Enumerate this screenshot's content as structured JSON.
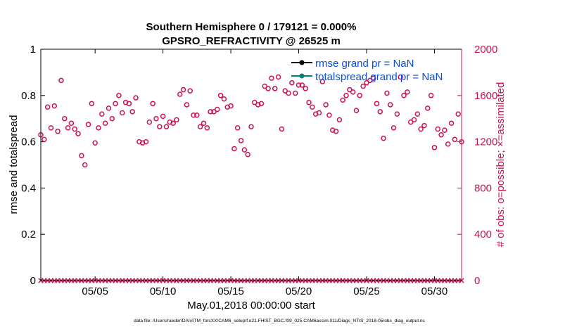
{
  "chart_data": {
    "type": "scatter",
    "title": "Southern Hemisphere 0 / 179121 = 0.000%",
    "subtitle": "GPSRO_REFRACTIVITY @ 26525 m",
    "xlabel": "May.01,2018 00:00:00 start",
    "ylabel_left": "rmse and totalspread",
    "ylabel_right": "# of obs: o=possible; ×=assimilated",
    "footer": "data file: /Users/raeder/DAI/ATM_forcXX/CAM6_setup/f.e21.FHIST_BGC.f09_025.CAM6assim.011/Diags_NTrS_2018-05/obs_diag_output.nc",
    "xlim": [
      1,
      32
    ],
    "xticks": [
      {
        "x": 5,
        "label": "05/05"
      },
      {
        "x": 10,
        "label": "05/10"
      },
      {
        "x": 15,
        "label": "05/15"
      },
      {
        "x": 20,
        "label": "05/20"
      },
      {
        "x": 25,
        "label": "05/25"
      },
      {
        "x": 30,
        "label": "05/30"
      }
    ],
    "ylim_left": [
      0,
      1
    ],
    "yticks_left": [
      "0",
      "0.2",
      "0.4",
      "0.6",
      "0.8",
      "1"
    ],
    "ylim_right": [
      0,
      2000
    ],
    "yticks_right": [
      "0",
      "400",
      "800",
      "1200",
      "1600",
      "2000"
    ],
    "legend": [
      {
        "label": "rmse grand pr = NaN",
        "color": "#000000"
      },
      {
        "label": "totalspread grand pr = NaN",
        "color": "#00807a"
      }
    ],
    "colors": {
      "obs": "#cc1155",
      "legend_text": "#0a4fe0",
      "axes": "#000000"
    },
    "possible_counts": [
      [
        1.0,
        1260
      ],
      [
        1.25,
        1220
      ],
      [
        1.5,
        1500
      ],
      [
        1.75,
        1320
      ],
      [
        2.0,
        1510
      ],
      [
        2.25,
        1290
      ],
      [
        2.5,
        1730
      ],
      [
        2.75,
        1400
      ],
      [
        3.0,
        1320
      ],
      [
        3.25,
        1360
      ],
      [
        3.5,
        1310
      ],
      [
        3.75,
        1270
      ],
      [
        4.0,
        1080
      ],
      [
        4.25,
        1000
      ],
      [
        4.5,
        1350
      ],
      [
        4.75,
        1530
      ],
      [
        5.0,
        1190
      ],
      [
        5.25,
        1320
      ],
      [
        5.5,
        1440
      ],
      [
        5.75,
        1360
      ],
      [
        6.0,
        1490
      ],
      [
        6.25,
        1400
      ],
      [
        6.5,
        1530
      ],
      [
        6.75,
        1600
      ],
      [
        7.0,
        1450
      ],
      [
        7.25,
        1540
      ],
      [
        7.5,
        1530
      ],
      [
        7.75,
        1460
      ],
      [
        8.0,
        1580
      ],
      [
        8.25,
        1200
      ],
      [
        8.5,
        1190
      ],
      [
        8.75,
        1200
      ],
      [
        9.0,
        1370
      ],
      [
        9.25,
        1530
      ],
      [
        9.5,
        1400
      ],
      [
        9.75,
        1330
      ],
      [
        10.0,
        1420
      ],
      [
        10.25,
        1330
      ],
      [
        10.5,
        1370
      ],
      [
        10.75,
        1360
      ],
      [
        11.0,
        1390
      ],
      [
        11.25,
        1610
      ],
      [
        11.5,
        1650
      ],
      [
        11.75,
        1520
      ],
      [
        12.0,
        1640
      ],
      [
        12.25,
        1430
      ],
      [
        12.5,
        1430
      ],
      [
        12.75,
        1330
      ],
      [
        13.0,
        1360
      ],
      [
        13.25,
        1320
      ],
      [
        13.5,
        1460
      ],
      [
        13.75,
        1460
      ],
      [
        14.0,
        1480
      ],
      [
        14.25,
        1600
      ],
      [
        14.5,
        1570
      ],
      [
        14.75,
        1500
      ],
      [
        15.0,
        1510
      ],
      [
        15.25,
        1140
      ],
      [
        15.5,
        1320
      ],
      [
        15.75,
        1210
      ],
      [
        16.0,
        1130
      ],
      [
        16.25,
        1090
      ],
      [
        16.5,
        1330
      ],
      [
        16.75,
        1540
      ],
      [
        17.0,
        1520
      ],
      [
        17.25,
        1530
      ],
      [
        17.5,
        1680
      ],
      [
        17.75,
        1660
      ],
      [
        18.0,
        1750
      ],
      [
        18.25,
        1660
      ],
      [
        18.5,
        1760
      ],
      [
        18.75,
        1310
      ],
      [
        19.0,
        1640
      ],
      [
        19.25,
        1620
      ],
      [
        19.5,
        1710
      ],
      [
        19.75,
        1620
      ],
      [
        20.0,
        1690
      ],
      [
        20.25,
        1690
      ],
      [
        20.5,
        1660
      ],
      [
        20.75,
        1540
      ],
      [
        21.0,
        1500
      ],
      [
        21.25,
        1440
      ],
      [
        21.5,
        1450
      ],
      [
        21.75,
        1720
      ],
      [
        22.0,
        1520
      ],
      [
        22.25,
        1430
      ],
      [
        22.5,
        1300
      ],
      [
        22.75,
        1290
      ],
      [
        23.0,
        1390
      ],
      [
        23.25,
        1560
      ],
      [
        23.5,
        1600
      ],
      [
        23.75,
        1650
      ],
      [
        24.0,
        1630
      ],
      [
        24.25,
        1470
      ],
      [
        24.5,
        1600
      ],
      [
        24.75,
        1680
      ],
      [
        25.0,
        1710
      ],
      [
        25.25,
        1730
      ],
      [
        25.5,
        1750
      ],
      [
        25.75,
        1530
      ],
      [
        26.0,
        1460
      ],
      [
        26.25,
        1230
      ],
      [
        26.5,
        1620
      ],
      [
        26.75,
        1520
      ],
      [
        27.0,
        1320
      ],
      [
        27.25,
        1440
      ],
      [
        27.5,
        1760
      ],
      [
        27.75,
        1600
      ],
      [
        28.0,
        1630
      ],
      [
        28.25,
        1370
      ],
      [
        28.5,
        1390
      ],
      [
        28.75,
        1440
      ],
      [
        29.0,
        1310
      ],
      [
        29.25,
        1340
      ],
      [
        29.5,
        1490
      ],
      [
        29.75,
        1600
      ],
      [
        30.0,
        1150
      ],
      [
        30.25,
        1310
      ],
      [
        30.5,
        1260
      ],
      [
        30.75,
        1300
      ],
      [
        31.0,
        1180
      ],
      [
        31.25,
        1360
      ],
      [
        31.5,
        1220
      ],
      [
        31.75,
        1440
      ],
      [
        32.0,
        1200
      ]
    ],
    "assimilated_counts_constant": 0,
    "assimilated_step": 0.25
  }
}
